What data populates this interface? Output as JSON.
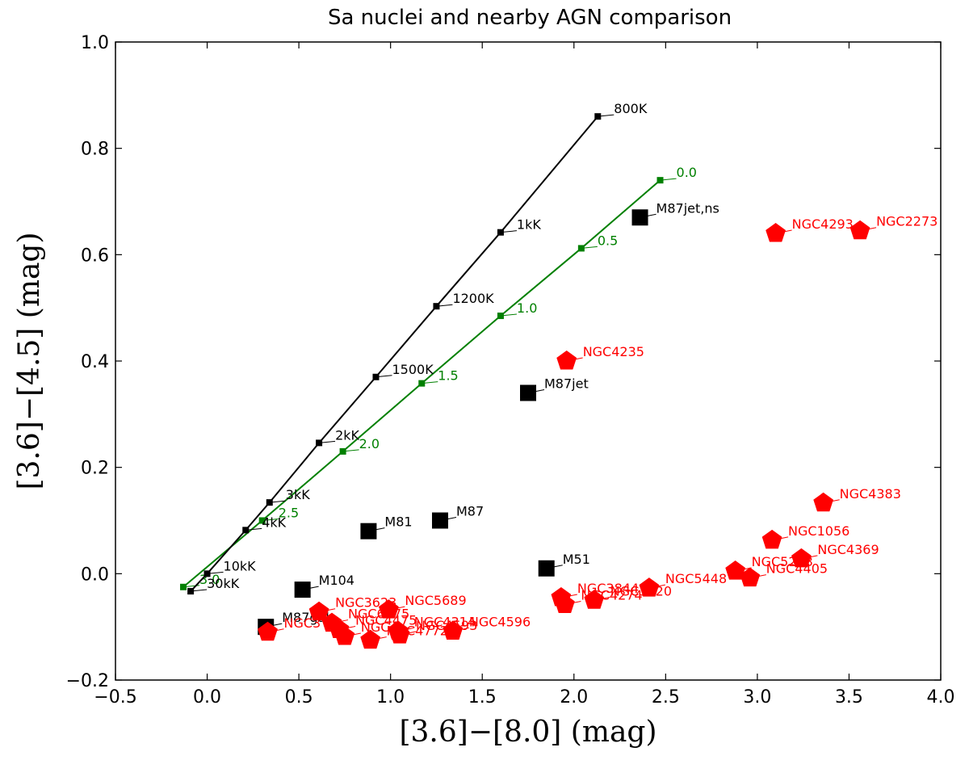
{
  "chart_data": {
    "type": "scatter",
    "title": "Sa nuclei and nearby AGN comparison",
    "xlabel": "[3.6]−[8.0] (mag)",
    "ylabel": "[3.6]−[4.5] (mag)",
    "xlim": [
      -0.5,
      4.0
    ],
    "ylim": [
      -0.2,
      1.0
    ],
    "xticks": [
      "−0.5",
      "0.0",
      "0.5",
      "1.0",
      "1.5",
      "2.0",
      "2.5",
      "3.0",
      "3.5",
      "4.0"
    ],
    "yticks": [
      "−0.2",
      "0.0",
      "0.2",
      "0.4",
      "0.6",
      "0.8",
      "1.0"
    ],
    "blackbody_track": {
      "color": "#000000",
      "points": [
        {
          "x": -0.09,
          "y": -0.033,
          "label": "30kK"
        },
        {
          "x": 0.0,
          "y": 0.0,
          "label": "10kK"
        },
        {
          "x": 0.21,
          "y": 0.082,
          "label": "4kK"
        },
        {
          "x": 0.34,
          "y": 0.134,
          "label": "3kK"
        },
        {
          "x": 0.61,
          "y": 0.246,
          "label": "2kK"
        },
        {
          "x": 0.92,
          "y": 0.37,
          "label": "1500K"
        },
        {
          "x": 1.25,
          "y": 0.503,
          "label": "1200K"
        },
        {
          "x": 1.6,
          "y": 0.642,
          "label": "1kK"
        },
        {
          "x": 2.13,
          "y": 0.86,
          "label": "800K"
        }
      ]
    },
    "powerlaw_track": {
      "color": "#008000",
      "points": [
        {
          "x": -0.13,
          "y": -0.025,
          "label": "3.0"
        },
        {
          "x": 0.3,
          "y": 0.1,
          "label": "2.5"
        },
        {
          "x": 0.74,
          "y": 0.23,
          "label": "2.0"
        },
        {
          "x": 1.17,
          "y": 0.358,
          "label": "1.5"
        },
        {
          "x": 1.6,
          "y": 0.485,
          "label": "1.0"
        },
        {
          "x": 2.04,
          "y": 0.612,
          "label": "0.5"
        },
        {
          "x": 2.47,
          "y": 0.74,
          "label": "0.0"
        }
      ]
    },
    "agn_points": {
      "color": "#000000",
      "marker": "square",
      "points": [
        {
          "x": 2.36,
          "y": 0.67,
          "label": "M87jet,ns"
        },
        {
          "x": 1.75,
          "y": 0.34,
          "label": "M87jet"
        },
        {
          "x": 1.27,
          "y": 0.1,
          "label": "M87"
        },
        {
          "x": 0.88,
          "y": 0.08,
          "label": "M81"
        },
        {
          "x": 1.85,
          "y": 0.01,
          "label": "M51"
        },
        {
          "x": 0.52,
          "y": -0.03,
          "label": "M104"
        },
        {
          "x": 0.32,
          "y": -0.1,
          "label": "M87gal"
        }
      ]
    },
    "sa_nuclei": {
      "color": "#ff0000",
      "marker": "pentagon",
      "points": [
        {
          "x": 3.1,
          "y": 0.64,
          "label": "NGC4293"
        },
        {
          "x": 3.56,
          "y": 0.645,
          "label": "NGC2273"
        },
        {
          "x": 1.96,
          "y": 0.4,
          "label": "NGC4235"
        },
        {
          "x": 3.36,
          "y": 0.133,
          "label": "NGC4383"
        },
        {
          "x": 3.08,
          "y": 0.063,
          "label": "NGC1056"
        },
        {
          "x": 3.24,
          "y": 0.028,
          "label": "NGC4369"
        },
        {
          "x": 2.88,
          "y": 0.005,
          "label": "NGC5273"
        },
        {
          "x": 2.96,
          "y": -0.008,
          "label": "NGC4405"
        },
        {
          "x": 2.41,
          "y": -0.027,
          "label": "NGC5448"
        },
        {
          "x": 2.11,
          "y": -0.05,
          "label": "NGC3620"
        },
        {
          "x": 1.93,
          "y": -0.045,
          "label": "NGC3844"
        },
        {
          "x": 1.95,
          "y": -0.058,
          "label": "NGC4274"
        },
        {
          "x": 0.61,
          "y": -0.072,
          "label": "NGC3623"
        },
        {
          "x": 0.99,
          "y": -0.068,
          "label": "NGC5689"
        },
        {
          "x": 0.68,
          "y": -0.093,
          "label": "NGC6675"
        },
        {
          "x": 0.72,
          "y": -0.105,
          "label": "NGC4475"
        },
        {
          "x": 1.04,
          "y": -0.108,
          "label": "NGC4314"
        },
        {
          "x": 1.34,
          "y": -0.108,
          "label": "NGC4596"
        },
        {
          "x": 0.33,
          "y": -0.11,
          "label": "NGC3"
        },
        {
          "x": 0.75,
          "y": -0.118,
          "label": "NGC4"
        },
        {
          "x": 0.89,
          "y": -0.125,
          "label": "NGC4772"
        },
        {
          "x": 1.05,
          "y": -0.115,
          "label": "NGC4593"
        }
      ]
    }
  }
}
